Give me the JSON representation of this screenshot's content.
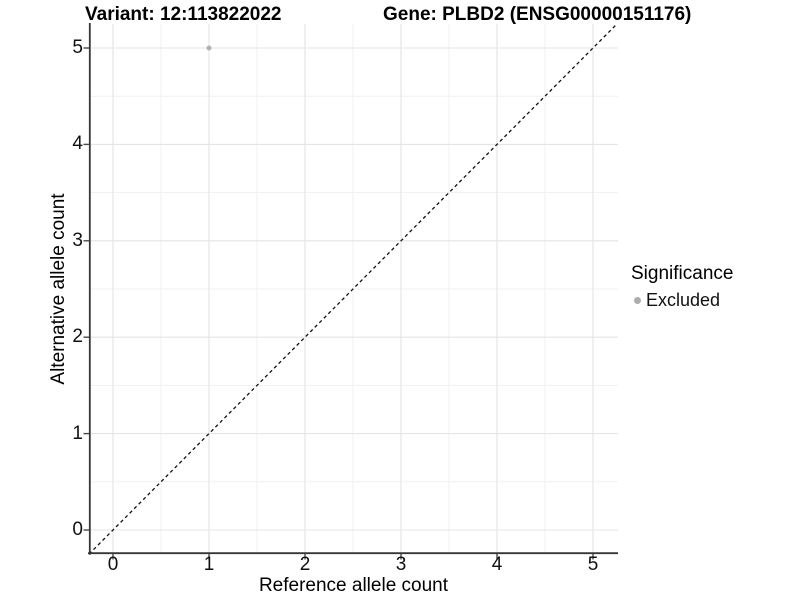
{
  "chart_data": {
    "type": "scatter",
    "titles": {
      "left": "Variant: 12:113822022",
      "right": "Gene: PLBD2 (ENSG00000151176)"
    },
    "xlabel": "Reference allele count",
    "ylabel": "Alternative allele count",
    "xlim": [
      -0.25,
      5.25
    ],
    "ylim": [
      -0.25,
      5.25
    ],
    "x_ticks": [
      0,
      1,
      2,
      3,
      4,
      5
    ],
    "y_ticks": [
      0,
      1,
      2,
      3,
      4,
      5
    ],
    "x_minor_ticks": [
      0.5,
      1.5,
      2.5,
      3.5,
      4.5
    ],
    "y_minor_ticks": [
      0.5,
      1.5,
      2.5,
      3.5,
      4.5
    ],
    "grid": "major+minor",
    "points": [
      {
        "x": 1,
        "y": 5,
        "series": "Excluded"
      }
    ],
    "reference_line": {
      "kind": "identity",
      "slope": 1,
      "intercept": 0,
      "style": "dashed",
      "color": "#111111"
    },
    "legend": {
      "title": "Significance",
      "position": "right",
      "items": [
        {
          "label": "Excluded",
          "color": "#adadad"
        }
      ]
    },
    "colors": {
      "point": "#b2b2b2",
      "grid_major": "#e4e4e4",
      "grid_minor": "#f1f1f1",
      "axis_line": "#363636",
      "tick_mark": "#4a4a4a",
      "text": "#000000",
      "background": "#ffffff"
    }
  }
}
